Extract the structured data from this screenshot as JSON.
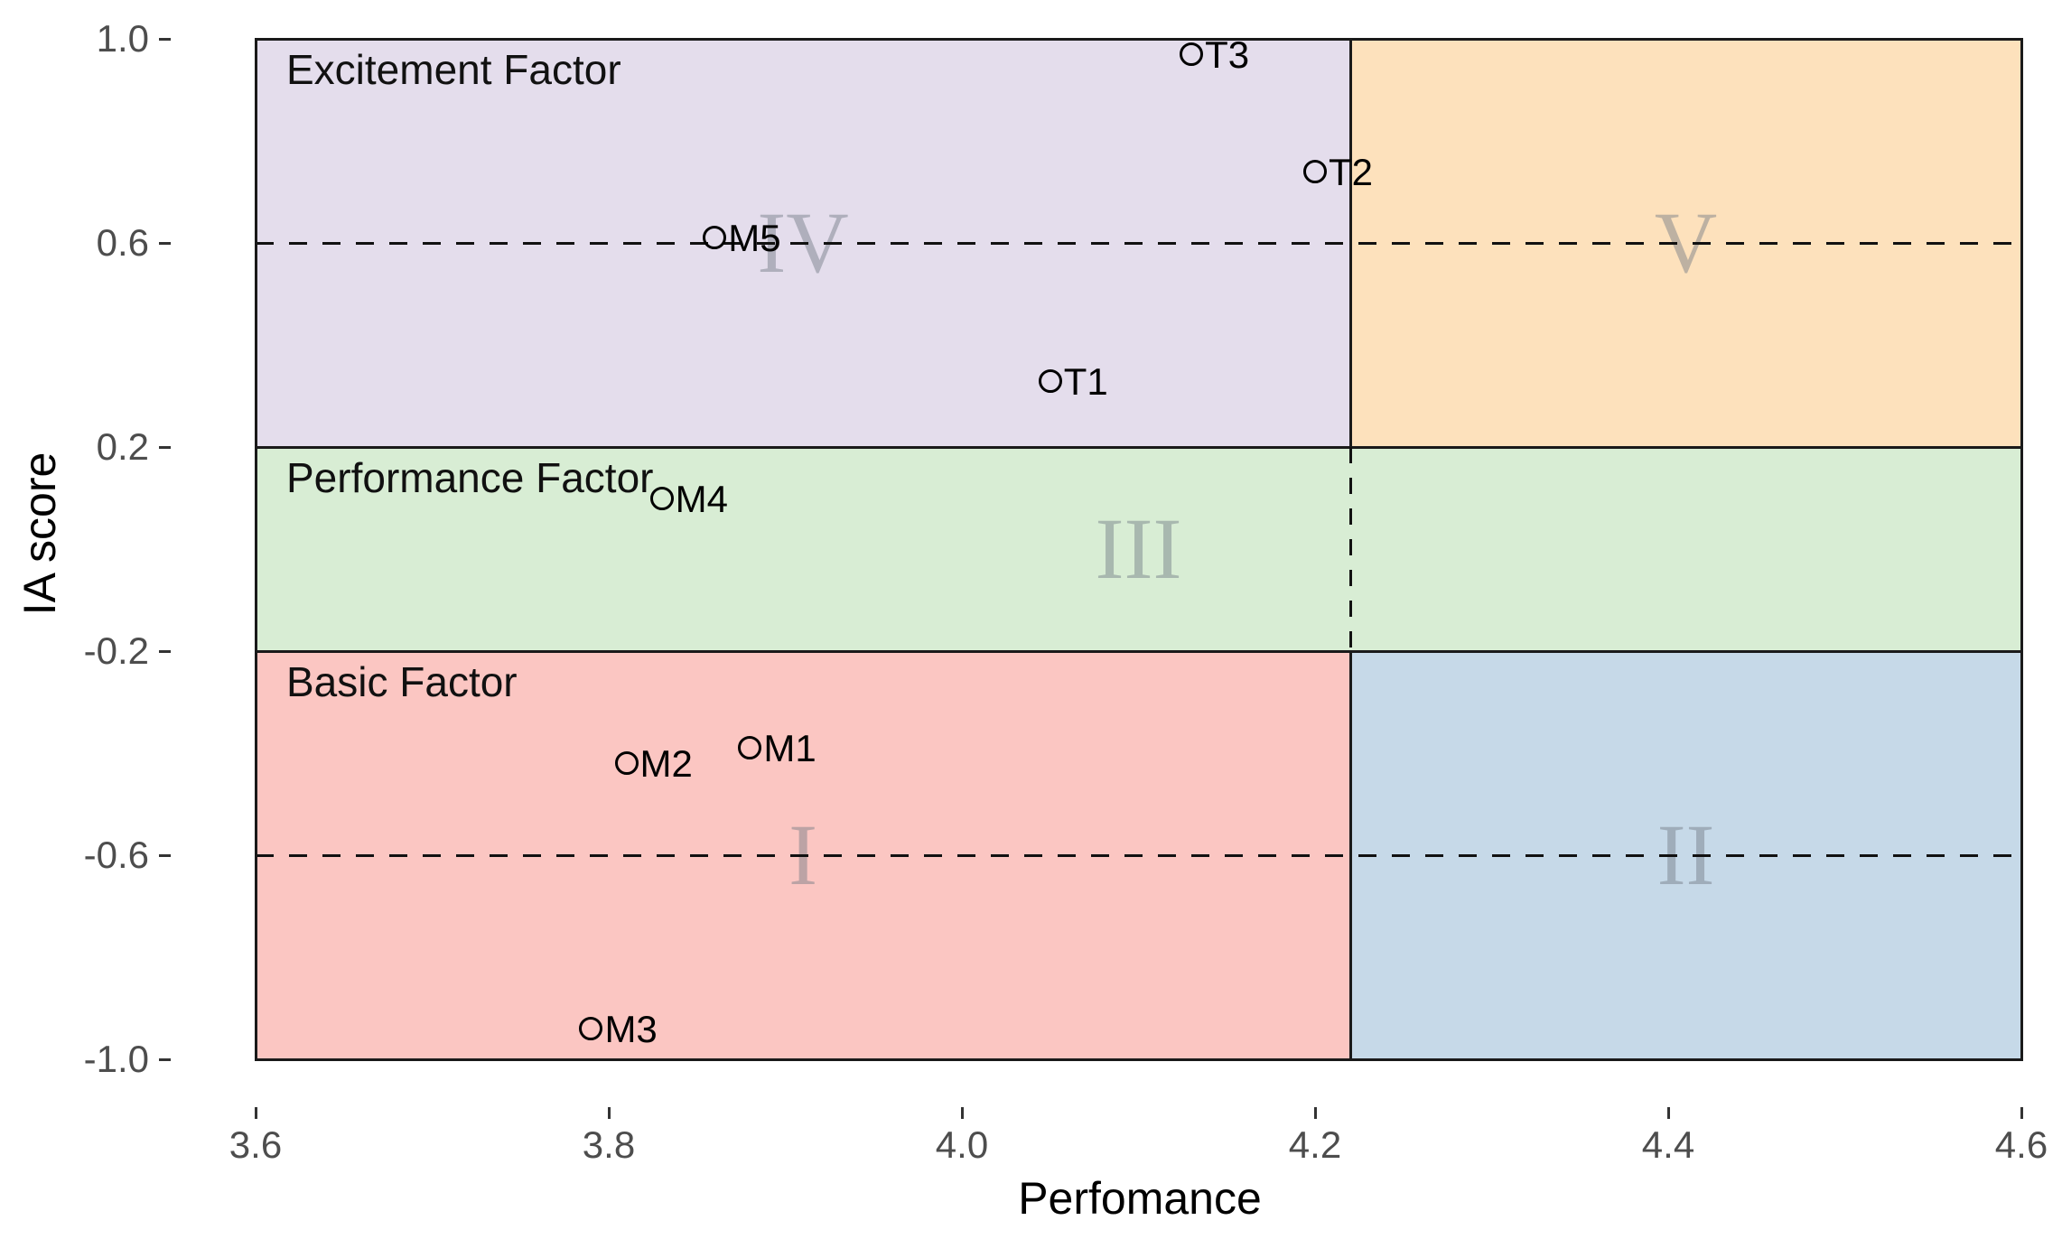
{
  "chart_data": {
    "type": "scatter",
    "title": "",
    "xlabel": "Perfomance",
    "ylabel": "IA score",
    "xlim": [
      3.6,
      4.6
    ],
    "ylim": [
      -1.0,
      1.0
    ],
    "grid": false,
    "legend": false,
    "x_ticks": [
      {
        "value": 3.6,
        "label": "3.6"
      },
      {
        "value": 3.8,
        "label": "3.8"
      },
      {
        "value": 4.0,
        "label": "4.0"
      },
      {
        "value": 4.2,
        "label": "4.2"
      },
      {
        "value": 4.4,
        "label": "4.4"
      },
      {
        "value": 4.6,
        "label": "4.6"
      }
    ],
    "y_ticks": [
      {
        "value": 1.0,
        "label": "1.0"
      },
      {
        "value": 0.6,
        "label": "0.6"
      },
      {
        "value": 0.2,
        "label": "0.2"
      },
      {
        "value": -0.2,
        "label": "-0.2"
      },
      {
        "value": -0.6,
        "label": "-0.6"
      },
      {
        "value": -1.0,
        "label": "-1.0"
      }
    ],
    "regions": [
      {
        "numeral": "IV",
        "title": "Excitement Factor",
        "x_range": [
          3.6,
          4.22
        ],
        "y_range": [
          0.2,
          1.0
        ],
        "fill": "#E4DDEC"
      },
      {
        "numeral": "V",
        "title": "",
        "x_range": [
          4.22,
          4.6
        ],
        "y_range": [
          0.2,
          1.0
        ],
        "fill": "#FDE1BC"
      },
      {
        "numeral": "III",
        "title": "Performance Factor",
        "x_range": [
          3.6,
          4.6
        ],
        "y_range": [
          -0.2,
          0.2
        ],
        "fill": "#D8EDD4"
      },
      {
        "numeral": "I",
        "title": "Basic Factor",
        "x_range": [
          3.6,
          4.22
        ],
        "y_range": [
          -1.0,
          -0.2
        ],
        "fill": "#FBC6C2"
      },
      {
        "numeral": "II",
        "title": "",
        "x_range": [
          4.22,
          4.6
        ],
        "y_range": [
          -1.0,
          -0.2
        ],
        "fill": "#C6D9E8"
      }
    ],
    "reference_lines": {
      "dashed_horizontal_y": [
        0.6,
        -0.6
      ],
      "solid_horizontal_y": [
        0.2,
        -0.2
      ],
      "vertical_split_x": 4.22,
      "vertical_split_dashed_between_y": [
        -0.2,
        0.2
      ]
    },
    "points": [
      {
        "label": "T3",
        "x": 4.13,
        "y": 0.97
      },
      {
        "label": "T2",
        "x": 4.2,
        "y": 0.74
      },
      {
        "label": "M5",
        "x": 3.86,
        "y": 0.61
      },
      {
        "label": "T1",
        "x": 4.05,
        "y": 0.33
      },
      {
        "label": "M4",
        "x": 3.83,
        "y": 0.1
      },
      {
        "label": "M1",
        "x": 3.88,
        "y": -0.39
      },
      {
        "label": "M2",
        "x": 3.81,
        "y": -0.42
      },
      {
        "label": "M3",
        "x": 3.79,
        "y": -0.94
      }
    ],
    "colors": {
      "background": "#ffffff",
      "panel_border": "#1a1a1a",
      "tick_label": "#4d4d4d",
      "axis_title": "#000000",
      "point_stroke": "#000000",
      "numeral_gray": "#6e7882"
    }
  }
}
